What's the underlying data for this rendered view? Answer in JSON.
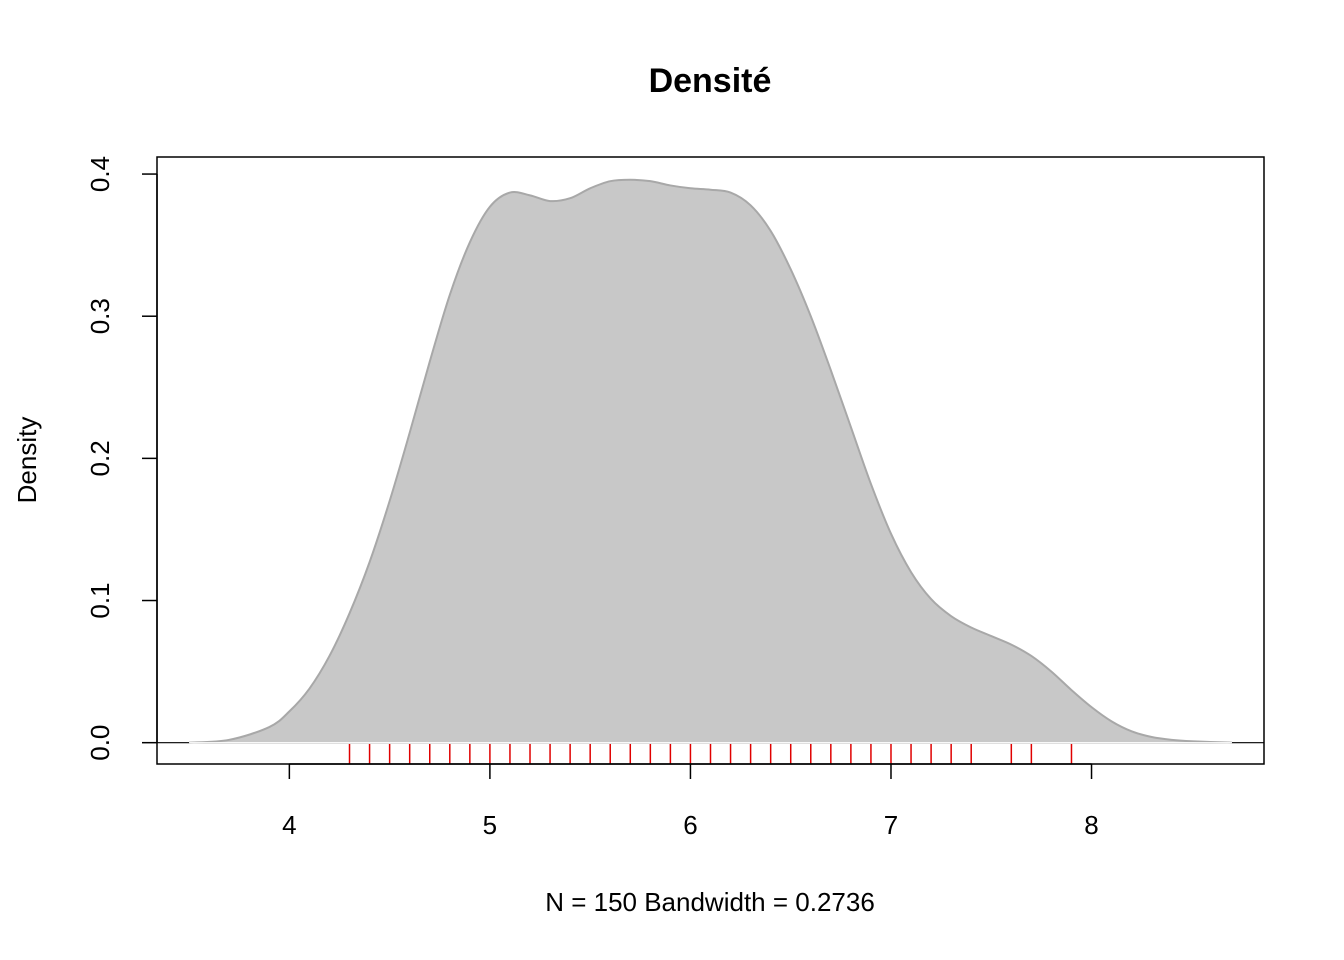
{
  "chart_data": {
    "type": "area",
    "title": "Densité",
    "xlabel": "N = 150   Bandwidth = 0.2736",
    "ylabel": "Density",
    "xlim": [
      3.34,
      8.86
    ],
    "ylim": [
      -0.015,
      0.412
    ],
    "xticks": [
      4,
      5,
      6,
      7,
      8
    ],
    "xtick_labels": [
      "4",
      "5",
      "6",
      "7",
      "8"
    ],
    "yticks": [
      0.0,
      0.1,
      0.2,
      0.3,
      0.4
    ],
    "ytick_labels": [
      "0.0",
      "0.1",
      "0.2",
      "0.3",
      "0.4"
    ],
    "grid": false,
    "fill_color": "#c8c8c8",
    "line_color": "#a8a8a8",
    "rug_color": "#e00000",
    "series": [
      {
        "x": [
          3.5,
          3.7,
          3.9,
          4.0,
          4.1,
          4.2,
          4.3,
          4.4,
          4.5,
          4.6,
          4.7,
          4.8,
          4.9,
          5.0,
          5.1,
          5.2,
          5.3,
          5.4,
          5.5,
          5.6,
          5.7,
          5.8,
          5.9,
          6.0,
          6.1,
          6.2,
          6.3,
          6.4,
          6.5,
          6.6,
          6.7,
          6.8,
          6.9,
          7.0,
          7.1,
          7.2,
          7.3,
          7.4,
          7.5,
          7.6,
          7.7,
          7.8,
          7.9,
          8.0,
          8.1,
          8.2,
          8.3,
          8.4,
          8.5,
          8.7
        ],
        "y": [
          0.0,
          0.002,
          0.011,
          0.022,
          0.038,
          0.061,
          0.091,
          0.127,
          0.17,
          0.218,
          0.268,
          0.315,
          0.352,
          0.377,
          0.387,
          0.385,
          0.381,
          0.383,
          0.39,
          0.395,
          0.396,
          0.395,
          0.392,
          0.39,
          0.389,
          0.387,
          0.378,
          0.36,
          0.333,
          0.3,
          0.262,
          0.222,
          0.182,
          0.147,
          0.12,
          0.101,
          0.089,
          0.081,
          0.075,
          0.069,
          0.061,
          0.05,
          0.037,
          0.025,
          0.015,
          0.008,
          0.004,
          0.002,
          0.001,
          0.0
        ]
      }
    ],
    "rug": [
      4.3,
      4.4,
      4.5,
      4.6,
      4.7,
      4.8,
      4.9,
      5.0,
      5.1,
      5.2,
      5.3,
      5.4,
      5.5,
      5.6,
      5.7,
      5.8,
      5.9,
      6.0,
      6.1,
      6.2,
      6.3,
      6.4,
      6.5,
      6.6,
      6.7,
      6.8,
      6.9,
      7.0,
      7.1,
      7.2,
      7.3,
      7.4,
      7.6,
      7.7,
      7.9
    ]
  }
}
